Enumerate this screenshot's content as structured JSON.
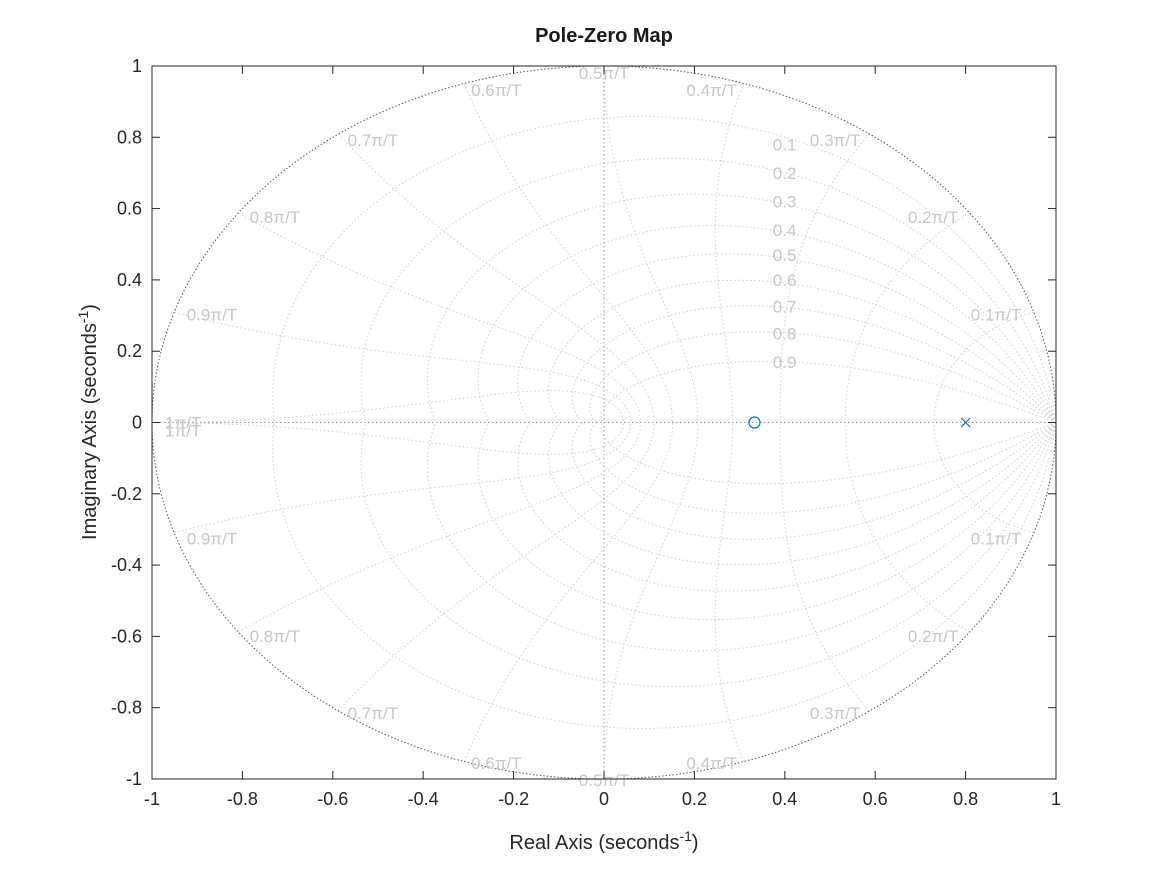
{
  "chart_data": {
    "type": "scatter",
    "title": "Pole-Zero Map",
    "xlabel": "Real Axis (seconds",
    "ylabel": "Imaginary Axis (seconds",
    "axis_unit_exponent": "-1",
    "xlim": [
      -1,
      1
    ],
    "ylim": [
      -1,
      1
    ],
    "xticks": [
      -1,
      -0.8,
      -0.6,
      -0.4,
      -0.2,
      0,
      0.2,
      0.4,
      0.6,
      0.8,
      1
    ],
    "xtick_labels": [
      "-1",
      "-0.8",
      "-0.6",
      "-0.4",
      "-0.2",
      "0",
      "0.2",
      "0.4",
      "0.6",
      "0.8",
      "1"
    ],
    "yticks": [
      1,
      0.8,
      0.6,
      0.4,
      0.2,
      0,
      -0.2,
      -0.4,
      -0.6,
      -0.8,
      -1
    ],
    "ytick_labels": [
      "1",
      "0.8",
      "0.6",
      "0.4",
      "0.2",
      "0",
      "-0.2",
      "-0.4",
      "-0.6",
      "-0.8",
      "-1"
    ],
    "grid": true,
    "grid_type": "zgrid",
    "damping_ratios": [
      0.1,
      0.2,
      0.3,
      0.4,
      0.5,
      0.6,
      0.7,
      0.8,
      0.9
    ],
    "damping_labels": [
      "0.1",
      "0.2",
      "0.3",
      "0.4",
      "0.5",
      "0.6",
      "0.7",
      "0.8",
      "0.9"
    ],
    "natural_frequencies": [
      0.1,
      0.2,
      0.3,
      0.4,
      0.5,
      0.6,
      0.7,
      0.8,
      0.9,
      1.0
    ],
    "frequency_labels": [
      "0.1π/T",
      "0.2π/T",
      "0.3π/T",
      "0.4π/T",
      "0.5π/T",
      "0.6π/T",
      "0.7π/T",
      "0.8π/T",
      "0.9π/T",
      "1π/T"
    ],
    "series": [
      {
        "marker": "o",
        "points": [
          {
            "x": 0.333,
            "y": 0
          }
        ]
      },
      {
        "marker": "x",
        "points": [
          {
            "x": 0.8,
            "y": 0
          }
        ]
      }
    ],
    "colors": {
      "marker": "#0072bd",
      "grid": "#d0d0d0",
      "grid_label": "#c8c8c8",
      "axes": "#262626",
      "unit_circle": "#5a5a5a"
    }
  }
}
